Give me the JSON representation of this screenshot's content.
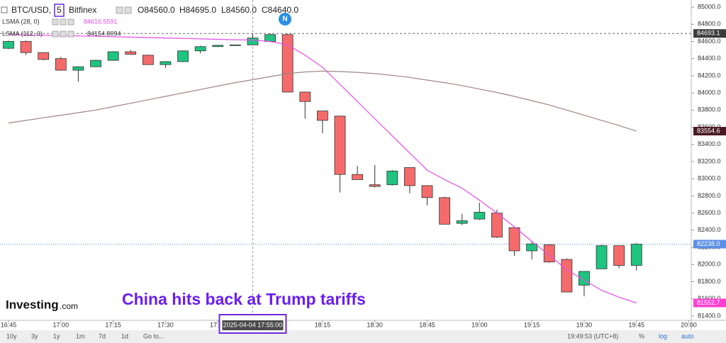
{
  "chart_data": {
    "type": "candlestick",
    "symbol": "BTC/USD,",
    "interval": "5",
    "exchange": "Bitfinex",
    "ohlc_text": [
      "O84560.0",
      "H84695.0",
      "L84560.0",
      "C84640.0"
    ],
    "badge": "N",
    "annotation": "China hits back at Trump tariffs",
    "logo": "Investing",
    "logo_suffix": ".com",
    "crosshair": {
      "x": 1075,
      "y": 84693.1,
      "label": "2025-04-04 17:55:00"
    },
    "x": [
      1005,
      1010,
      1015,
      1020,
      1025,
      1030,
      1035,
      1040,
      1045,
      1050,
      1055,
      1060,
      1065,
      1070,
      1075,
      1080,
      1085,
      1090,
      1095,
      1100,
      1105,
      1110,
      1115,
      1120,
      1125,
      1130,
      1135,
      1140,
      1145,
      1150,
      1155,
      1160,
      1165,
      1170,
      1175,
      1180,
      1185
    ],
    "open": [
      84520,
      84600,
      84470,
      84400,
      84265,
      84305,
      84380,
      84480,
      84440,
      84330,
      84365,
      84490,
      84540,
      84555,
      84560,
      84600,
      84680,
      84010,
      83790,
      83730,
      83050,
      82930,
      82930,
      83130,
      82920,
      82780,
      82480,
      82530,
      82600,
      82430,
      82160,
      82230,
      82060,
      81760,
      81950,
      82220,
      81990
    ],
    "high": [
      84610,
      84610,
      84475,
      84420,
      84310,
      84385,
      84485,
      84500,
      84445,
      84370,
      84495,
      84550,
      84560,
      84565,
      84695,
      84693,
      84690,
      84010,
      83790,
      83730,
      83150,
      83160,
      83100,
      83130,
      82920,
      82790,
      82590,
      82720,
      82640,
      82430,
      82270,
      82240,
      82070,
      81920,
      82230,
      82220,
      82250
    ],
    "low": [
      84510,
      84440,
      84380,
      84260,
      84130,
      84300,
      84375,
      84445,
      84330,
      84290,
      84360,
      84460,
      84535,
      84550,
      84560,
      84590,
      84010,
      83700,
      83530,
      82840,
      82990,
      82900,
      82920,
      82830,
      82690,
      82470,
      82460,
      82520,
      82310,
      82100,
      82060,
      82020,
      81680,
      81630,
      81950,
      81960,
      81930
    ],
    "close": [
      84600,
      84470,
      84390,
      84265,
      84305,
      84380,
      84480,
      84450,
      84330,
      84365,
      84490,
      84540,
      84555,
      84560,
      84640,
      84680,
      84010,
      83900,
      83680,
      83050,
      82990,
      82910,
      83090,
      82920,
      82780,
      82470,
      82510,
      82610,
      82320,
      82160,
      82240,
      82030,
      81680,
      81920,
      82220,
      81990,
      82238
    ],
    "up_color": "#1ec47f",
    "down_color": "#f56b6b",
    "lines": [
      {
        "name": "LSMA (28, 0)",
        "legend_value": 84616.5591,
        "color": "#e84ce8",
        "values": [
          84680,
          84676,
          84672,
          84668,
          84664,
          84660,
          84655,
          84650,
          84645,
          84640,
          84635,
          84630,
          84625,
          84620,
          84616.5591,
          84600,
          84560,
          84440,
          84300,
          84100,
          83900,
          83700,
          83500,
          83300,
          83100,
          82990,
          82890,
          82750,
          82600,
          82440,
          82270,
          82110,
          81940,
          81820,
          81700,
          81620,
          81552.7
        ]
      },
      {
        "name": "LSMA (112, 0)",
        "legend_value": 84154.8094,
        "color": "#a08686",
        "values": [
          83650,
          83680,
          83710,
          83740,
          83770,
          83800,
          83840,
          83880,
          83920,
          83960,
          84000,
          84040,
          84080,
          84120,
          84154.8094,
          84190,
          84225,
          84245,
          84255,
          84250,
          84240,
          84225,
          84205,
          84180,
          84150,
          84120,
          84085,
          84045,
          84005,
          83960,
          83910,
          83860,
          83800,
          83740,
          83680,
          83620,
          83554.6
        ]
      }
    ],
    "price_labels": [
      {
        "value": 84693.1,
        "color": "#3a3a3a"
      },
      {
        "value": 83554.6,
        "color": "#4a1a22"
      },
      {
        "value": 82238,
        "label": "82238.0",
        "color": "#5b8fe6"
      },
      {
        "value": 81552.7,
        "color": "#ff3fd0"
      }
    ],
    "xlim": [
      1002.56,
      1200.7
    ],
    "xticks": [
      {
        "value": 1005,
        "label": "16:45"
      },
      {
        "value": 1020,
        "label": "17:00"
      },
      {
        "value": 1035,
        "label": "17:15"
      },
      {
        "value": 1050,
        "label": "17:30"
      },
      {
        "value": 1065,
        "label": "17:45"
      },
      {
        "value": 1080,
        "label": "18:00"
      },
      {
        "value": 1095,
        "label": "18:15"
      },
      {
        "value": 1110,
        "label": "18:30"
      },
      {
        "value": 1125,
        "label": "18:45"
      },
      {
        "value": 1140,
        "label": "19:00"
      },
      {
        "value": 1155,
        "label": "19:15"
      },
      {
        "value": 1170,
        "label": "19:30"
      },
      {
        "value": 1185,
        "label": "19:45"
      },
      {
        "value": 1200,
        "label": "20:00"
      }
    ],
    "ylim": [
      81350,
      85083
    ],
    "yticks": [
      {
        "value": 85000,
        "label": "85000.0"
      },
      {
        "value": 84800,
        "label": "84800.0"
      },
      {
        "value": 84600,
        "label": "84600.0"
      },
      {
        "value": 84400,
        "label": "84400.0"
      },
      {
        "value": 84200,
        "label": "84200.0"
      },
      {
        "value": 84000,
        "label": "84000.0"
      },
      {
        "value": 83800,
        "label": "83800.0"
      },
      {
        "value": 83600,
        "label": "83600.0"
      },
      {
        "value": 83400,
        "label": "83400.0"
      },
      {
        "value": 83200,
        "label": "83200.0"
      },
      {
        "value": 83000,
        "label": "83000.0"
      },
      {
        "value": 82800,
        "label": "82800.0"
      },
      {
        "value": 82600,
        "label": "82600.0"
      },
      {
        "value": 82400,
        "label": "82400.0"
      },
      {
        "value": 82200,
        "label": "82200.0"
      },
      {
        "value": 82000,
        "label": "82000.0"
      },
      {
        "value": 81800,
        "label": "81800.0"
      },
      {
        "value": 81600,
        "label": "81600.0"
      },
      {
        "value": 81400,
        "label": "81400.0"
      }
    ],
    "grid": false,
    "toolbar_left": [
      "10y",
      "3y",
      "1y",
      "1m",
      "7d",
      "1d",
      "Go to..."
    ],
    "toolbar_right": [
      "19:49:53 (UTC+8)",
      "%",
      "log",
      "auto"
    ]
  }
}
